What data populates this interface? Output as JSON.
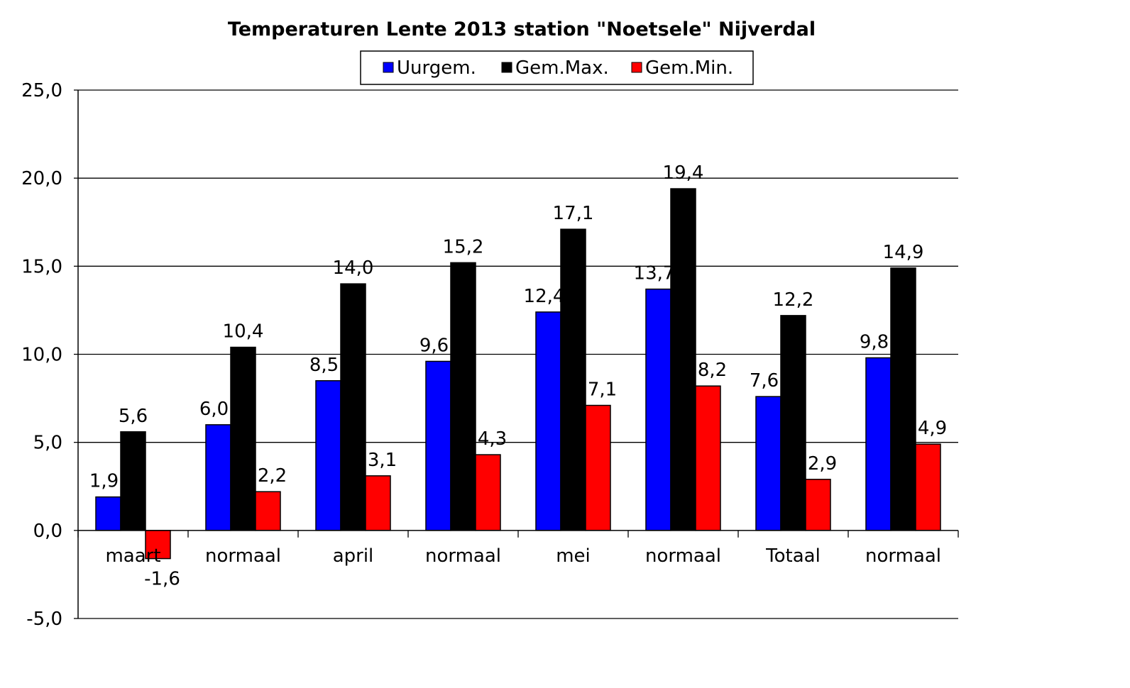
{
  "chart_data": {
    "type": "bar",
    "title": "Temperaturen Lente 2013 station \"Noetsele\" Nijverdal",
    "xlabel": "",
    "ylabel": "",
    "categories": [
      "maart",
      "normaal",
      "april",
      "normaal",
      "mei",
      "normaal",
      "Totaal",
      "normaal"
    ],
    "series": [
      {
        "name": "Uurgem.",
        "color": "#0000ff",
        "values": [
          1.9,
          6.0,
          8.5,
          9.6,
          12.4,
          13.7,
          7.6,
          9.8
        ],
        "labels": [
          "1,9",
          "6,0",
          "8,5",
          "9,6",
          "12,4",
          "13,7",
          "7,6",
          "9,8"
        ]
      },
      {
        "name": "Gem.Max.",
        "color": "#000000",
        "values": [
          5.6,
          10.4,
          14.0,
          15.2,
          17.1,
          19.4,
          12.2,
          14.9
        ],
        "labels": [
          "5,6",
          "10,4",
          "14,0",
          "15,2",
          "17,1",
          "19,4",
          "12,2",
          "14,9"
        ]
      },
      {
        "name": "Gem.Min.",
        "color": "#ff0000",
        "values": [
          -1.6,
          2.2,
          3.1,
          4.3,
          7.1,
          8.2,
          2.9,
          4.9
        ],
        "labels": [
          "-1,6",
          "2,2",
          "3,1",
          "4,3",
          "7,1",
          "8,2",
          "2,9",
          "4,9"
        ]
      }
    ],
    "ylim": [
      -5,
      25
    ],
    "yticks": [
      -5,
      0,
      5,
      10,
      15,
      20,
      25
    ],
    "ytick_labels": [
      "-5,0",
      "0,0",
      "5,0",
      "10,0",
      "15,0",
      "20,0",
      "25,0"
    ],
    "grid": true,
    "legend": "top-center"
  }
}
